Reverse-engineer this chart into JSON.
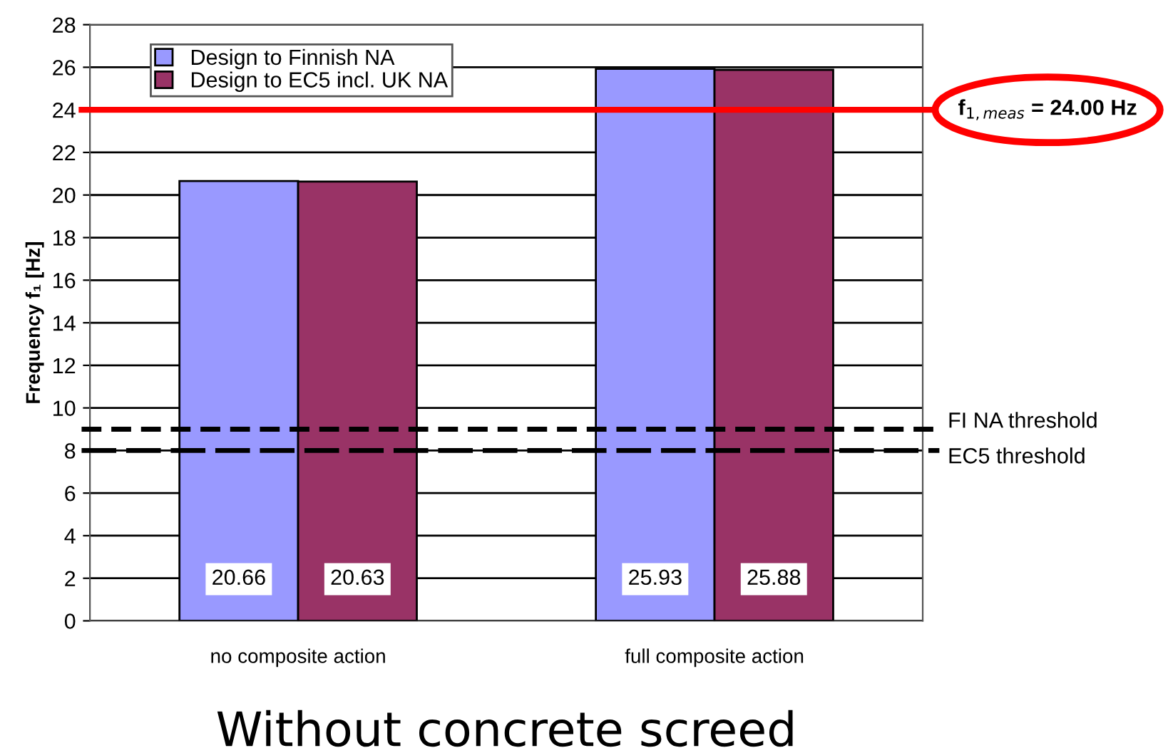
{
  "chart_data": {
    "type": "bar",
    "title": "Without concrete screed",
    "ylabel": "Frequency f₁ [Hz]",
    "categories": [
      "no composite action",
      "full composite action"
    ],
    "series": [
      {
        "name": "Design to Finnish NA",
        "color": "#9999ff",
        "values": [
          20.66,
          25.93
        ]
      },
      {
        "name": "Design to EC5 incl. UK NA",
        "color": "#993366",
        "values": [
          20.63,
          25.88
        ]
      }
    ],
    "data_labels": true,
    "ylim": [
      0,
      28
    ],
    "yticks": [
      0,
      2,
      4,
      6,
      8,
      10,
      12,
      14,
      16,
      18,
      20,
      22,
      24,
      26,
      28
    ],
    "grid": "y",
    "legend": "top left",
    "ref_lines": [
      {
        "axis": "y",
        "value": 24,
        "label": "f$_{1,meas}$ = 24.00 Hz",
        "color": "#ff0000",
        "line_style": "solid"
      },
      {
        "axis": "y",
        "value": 9,
        "label": "FI NA threshold",
        "color": "#000000",
        "line_style": "dashed"
      },
      {
        "axis": "y",
        "value": 8,
        "label": "EC5 threshold",
        "color": "#000000",
        "line_style": "dashed"
      }
    ]
  }
}
